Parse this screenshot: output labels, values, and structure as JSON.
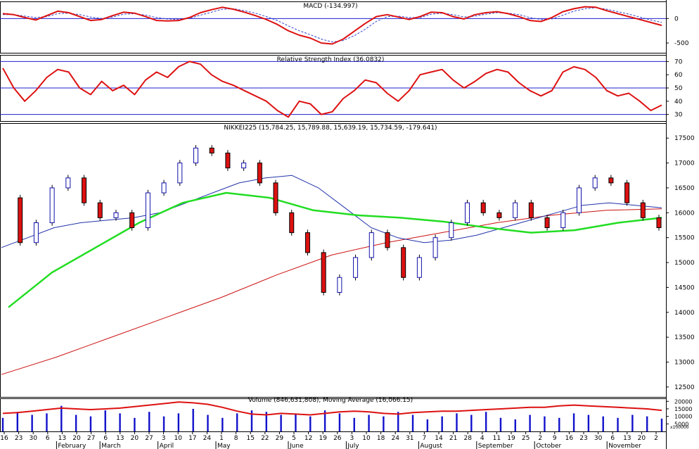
{
  "colors": {
    "axis": "#000000",
    "guide": "#1f1fcf",
    "price_ma_short": "#22dd22",
    "price_ma_mid": "#2233aa",
    "price_ma_long": "#cc1111",
    "macd": "#dd1111",
    "signal": "#3344cc",
    "rsi": "#dd1111",
    "volume": "#1111cc",
    "volume_ma": "#dd1111",
    "up_candle": "#1111aa",
    "down_candle": "#dd1111"
  },
  "chart_data": [
    {
      "type": "line",
      "title": "MACD (-134.997)",
      "yticks": [
        "0",
        "-500"
      ],
      "ylim": [
        -700,
        350
      ],
      "series": [
        {
          "values": [
            100,
            80,
            20,
            -30,
            60,
            150,
            120,
            40,
            -40,
            -20,
            60,
            130,
            110,
            40,
            -40,
            -50,
            -40,
            20,
            120,
            180,
            230,
            190,
            130,
            60,
            -20,
            -120,
            -250,
            -340,
            -400,
            -500,
            -520,
            -420,
            -260,
            -100,
            40,
            80,
            30,
            -20,
            40,
            130,
            120,
            40,
            -10,
            80,
            120,
            140,
            100,
            40,
            -40,
            -60,
            20,
            140,
            200,
            240,
            230,
            160,
            100,
            40,
            -20,
            -80,
            -140
          ]
        },
        {
          "values": [
            80,
            80,
            50,
            20,
            40,
            100,
            110,
            80,
            30,
            0,
            30,
            90,
            100,
            70,
            20,
            -10,
            -20,
            0,
            70,
            130,
            190,
            200,
            160,
            110,
            40,
            -40,
            -150,
            -250,
            -330,
            -420,
            -480,
            -450,
            -350,
            -220,
            -60,
            40,
            50,
            20,
            20,
            90,
            110,
            80,
            30,
            50,
            90,
            120,
            110,
            80,
            20,
            -20,
            -10,
            70,
            150,
            200,
            220,
            190,
            140,
            90,
            30,
            -30,
            -80
          ]
        }
      ]
    },
    {
      "type": "line",
      "title": "Relative Strength Index (36.0832)",
      "yticks": [
        "70",
        "60",
        "50",
        "40",
        "30"
      ],
      "guides": [
        70,
        50,
        30
      ],
      "ylim": [
        25,
        75
      ],
      "series": [
        {
          "values": [
            65,
            50,
            40,
            48,
            58,
            64,
            62,
            50,
            45,
            55,
            48,
            52,
            45,
            56,
            62,
            58,
            66,
            70,
            68,
            60,
            55,
            52,
            48,
            44,
            40,
            33,
            28,
            40,
            38,
            30,
            32,
            42,
            48,
            56,
            54,
            46,
            40,
            48,
            60,
            62,
            64,
            56,
            50,
            55,
            61,
            64,
            62,
            54,
            48,
            44,
            48,
            62,
            66,
            64,
            58,
            48,
            44,
            46,
            40,
            33,
            37
          ]
        }
      ]
    },
    {
      "type": "line",
      "title": "NIKKEI225 (15,784.25, 15,789.88, 15,639.19, 15,734.59, -179.641)",
      "yticks": [
        "17500",
        "17000",
        "16500",
        "16000",
        "15500",
        "15000",
        "14500",
        "14000",
        "13500",
        "13000",
        "12500"
      ],
      "ylim": [
        12300,
        17800
      ],
      "series": [
        {
          "values": [
            16300,
            15400,
            15800,
            16500,
            16700,
            16200,
            15900,
            16000,
            15700,
            16400,
            16600,
            17000,
            17300,
            17200,
            16900,
            17000,
            16600,
            16000,
            15600,
            15200,
            14400,
            14700,
            15100,
            15600,
            15300,
            14700,
            15100,
            15500,
            15800,
            16200,
            16000,
            15900,
            16200,
            15900,
            15700,
            16000,
            16500,
            16700,
            16600,
            16200,
            15900,
            15700
          ]
        },
        {
          "values": [
            15300,
            15500,
            15700,
            15800,
            15850,
            15900,
            16000,
            16200,
            16400,
            16600,
            16700,
            16750,
            16500,
            16100,
            15700,
            15500,
            15400,
            15450,
            15550,
            15700,
            15850,
            16000,
            16150,
            16200,
            16150,
            16100
          ]
        },
        {
          "values": [
            14100,
            14800,
            15300,
            15800,
            16200,
            16400,
            16300,
            16050,
            15950,
            15900,
            15820,
            15700,
            15600,
            15650,
            15800,
            15900
          ]
        },
        {
          "values": [
            12750,
            13100,
            13500,
            13900,
            14300,
            14750,
            15150,
            15400,
            15600,
            15800,
            15950,
            16050,
            16080
          ]
        }
      ]
    },
    {
      "type": "bar",
      "title": "Volume (846,631,808), Moving Average (16,066.15)",
      "yticks": [
        "20000",
        "15000",
        "10000",
        "5000"
      ],
      "unit_label": "x100000",
      "ylim": [
        0,
        22000
      ],
      "categories": [
        "16",
        "23",
        "30",
        "6",
        "13",
        "20",
        "27",
        "6",
        "13",
        "20",
        "27",
        "3",
        "10",
        "17",
        "24",
        "1",
        "8",
        "15",
        "22",
        "29",
        "5",
        "12",
        "19",
        "26",
        "3",
        "10",
        "18",
        "24",
        "31",
        "7",
        "14",
        "21",
        "28",
        "4",
        "11",
        "19",
        "25",
        "2",
        "9",
        "16",
        "23",
        "30",
        "6",
        "13",
        "20",
        "2"
      ],
      "months": [
        "February",
        "March",
        "April",
        "May",
        "June",
        "July",
        "August",
        "September",
        "October",
        "November"
      ],
      "values": [
        9000,
        13000,
        11000,
        12000,
        17000,
        11000,
        10000,
        14000,
        12000,
        9000,
        13000,
        10000,
        12000,
        15000,
        11000,
        9000,
        12000,
        14000,
        13000,
        11000,
        12000,
        10000,
        14000,
        12000,
        9000,
        11000,
        10000,
        13000,
        11000,
        8000,
        10000,
        12000,
        11000,
        13000,
        9000,
        8000,
        11000,
        10000,
        9000,
        12000,
        11000,
        10000,
        9000,
        11000,
        10000,
        8500
      ],
      "series": [
        {
          "name": "Moving Average",
          "values": [
            12000,
            12500,
            13500,
            14500,
            15500,
            15000,
            14500,
            15000,
            15500,
            16500,
            17500,
            18500,
            19500,
            19000,
            18000,
            16000,
            13500,
            11500,
            11000,
            12000,
            11500,
            11000,
            12000,
            13000,
            13500,
            13000,
            12000,
            11500,
            12500,
            13000,
            13500,
            13500,
            14000,
            14500,
            15000,
            15500,
            16000,
            16000,
            17000,
            17500,
            17000,
            16500,
            16000,
            15500,
            15000,
            14000
          ]
        }
      ]
    }
  ]
}
